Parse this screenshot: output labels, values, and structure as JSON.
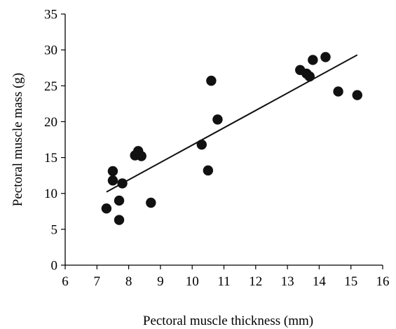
{
  "chart_data": {
    "type": "scatter",
    "title": "",
    "xlabel": "Pectoral muscle thickness (mm)",
    "ylabel": "Pectoral muscle mass (g)",
    "xlim": [
      6,
      16
    ],
    "ylim": [
      0,
      35
    ],
    "xticks": [
      "6",
      "7",
      "8",
      "9",
      "10",
      "11",
      "12",
      "13",
      "14",
      "15",
      "16"
    ],
    "yticks": [
      "0",
      "5",
      "10",
      "15",
      "20",
      "25",
      "30",
      "35"
    ],
    "grid": false,
    "legend": "none",
    "series": [
      {
        "points": [
          {
            "x": 7.3,
            "y": 7.9
          },
          {
            "x": 7.5,
            "y": 13.1
          },
          {
            "x": 7.5,
            "y": 11.8
          },
          {
            "x": 7.7,
            "y": 9.0
          },
          {
            "x": 7.7,
            "y": 6.3
          },
          {
            "x": 7.8,
            "y": 11.4
          },
          {
            "x": 8.2,
            "y": 15.3
          },
          {
            "x": 8.3,
            "y": 15.9
          },
          {
            "x": 8.4,
            "y": 15.2
          },
          {
            "x": 8.7,
            "y": 8.7
          },
          {
            "x": 10.3,
            "y": 16.8
          },
          {
            "x": 10.5,
            "y": 13.2
          },
          {
            "x": 10.6,
            "y": 25.7
          },
          {
            "x": 10.8,
            "y": 20.3
          },
          {
            "x": 13.4,
            "y": 27.2
          },
          {
            "x": 13.6,
            "y": 26.7
          },
          {
            "x": 13.7,
            "y": 26.3
          },
          {
            "x": 13.8,
            "y": 28.6
          },
          {
            "x": 14.2,
            "y": 29.0
          },
          {
            "x": 14.6,
            "y": 24.2
          },
          {
            "x": 15.2,
            "y": 23.7
          }
        ],
        "color": "#111111"
      }
    ],
    "trendline": {
      "x": [
        7.3,
        15.2
      ],
      "y": [
        10.2,
        29.3
      ],
      "color": "#111111"
    }
  }
}
